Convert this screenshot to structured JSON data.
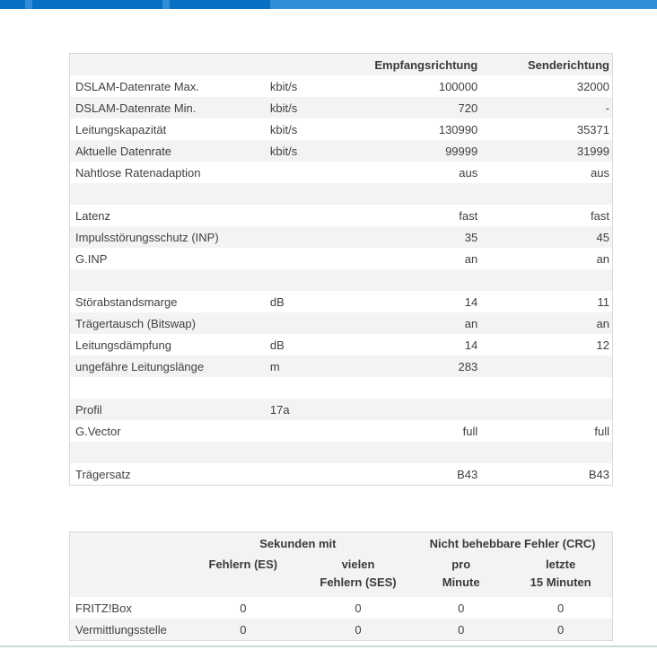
{
  "colors": {
    "tab_dark": "#0770c2",
    "tab_light": "#2f8dd9",
    "row_stripe": "#f4f3f1",
    "table_border": "#d9d9d9",
    "footer_line": "#ccd7db"
  },
  "dsl_table": {
    "header": {
      "rx_label": "Empfangsrichtung",
      "tx_label": "Senderichtung"
    },
    "rows": [
      {
        "label": "DSLAM-Datenrate Max.",
        "unit": "kbit/s",
        "rx": "100000",
        "tx": "32000"
      },
      {
        "label": "DSLAM-Datenrate Min.",
        "unit": "kbit/s",
        "rx": "720",
        "tx": "-"
      },
      {
        "label": "Leitungskapazität",
        "unit": "kbit/s",
        "rx": "130990",
        "tx": "35371"
      },
      {
        "label": "Aktuelle Datenrate",
        "unit": "kbit/s",
        "rx": "99999",
        "tx": "31999"
      },
      {
        "label": "Nahtlose Ratenadaption",
        "unit": "",
        "rx": "aus",
        "tx": "aus"
      },
      {
        "label": "",
        "unit": "",
        "rx": "",
        "tx": ""
      },
      {
        "label": "Latenz",
        "unit": "",
        "rx": "fast",
        "tx": "fast"
      },
      {
        "label": "Impulsstörungsschutz (INP)",
        "unit": "",
        "rx": "35",
        "tx": "45"
      },
      {
        "label": "G.INP",
        "unit": "",
        "rx": "an",
        "tx": "an"
      },
      {
        "label": "",
        "unit": "",
        "rx": "",
        "tx": ""
      },
      {
        "label": "Störabstandsmarge",
        "unit": "dB",
        "rx": "14",
        "tx": "11"
      },
      {
        "label": "Trägertausch (Bitswap)",
        "unit": "",
        "rx": "an",
        "tx": "an"
      },
      {
        "label": "Leitungsdämpfung",
        "unit": "dB",
        "rx": "14",
        "tx": "12"
      },
      {
        "label": "ungefähre Leitungslänge",
        "unit": "m",
        "rx": "283",
        "tx": ""
      },
      {
        "label": "",
        "unit": "",
        "rx": "",
        "tx": ""
      },
      {
        "label": "Profil",
        "unit": "17a",
        "rx": "",
        "tx": ""
      },
      {
        "label": "G.Vector",
        "unit": "",
        "rx": "full",
        "tx": "full"
      },
      {
        "label": "",
        "unit": "",
        "rx": "",
        "tx": ""
      },
      {
        "label": "Trägersatz",
        "unit": "",
        "rx": "B43",
        "tx": "B43"
      }
    ]
  },
  "error_table": {
    "group_headers": [
      "Sekunden mit",
      "Nicht behebbare Fehler (CRC)"
    ],
    "col_headers": [
      "Fehlern (ES)",
      "vielen\nFehlern (SES)",
      "pro\nMinute",
      "letzte\n15 Minuten"
    ],
    "rows": [
      {
        "label": "FRITZ!Box",
        "values": [
          "0",
          "0",
          "0",
          "0"
        ]
      },
      {
        "label": "Vermittlungsstelle",
        "values": [
          "0",
          "0",
          "0",
          "0"
        ]
      }
    ]
  }
}
